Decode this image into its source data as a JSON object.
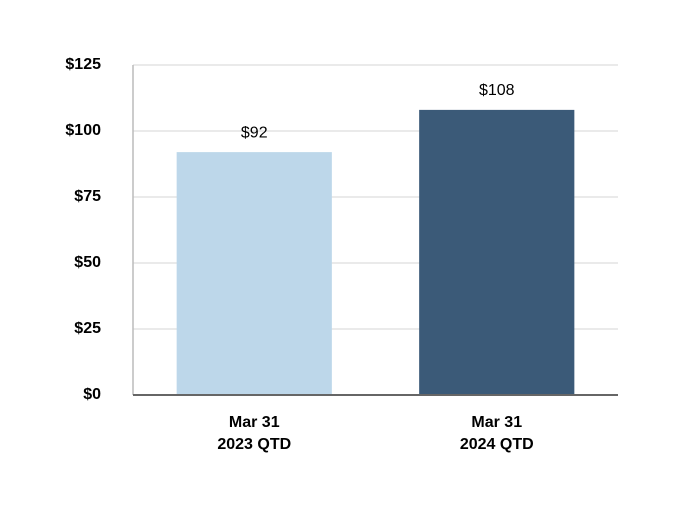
{
  "chart_data": {
    "type": "bar",
    "categories": [
      [
        "Mar 31",
        "2023 QTD"
      ],
      [
        "Mar 31",
        "2024 QTD"
      ]
    ],
    "values": [
      92,
      108
    ],
    "value_labels": [
      "$92",
      "$108"
    ],
    "colors": [
      "#bdd7ea",
      "#3b5a78"
    ],
    "ylim": [
      0,
      125
    ],
    "yticks": [
      {
        "value": 0,
        "label": "$0"
      },
      {
        "value": 25,
        "label": "$25"
      },
      {
        "value": 50,
        "label": "$50"
      },
      {
        "value": 75,
        "label": "$75"
      },
      {
        "value": 100,
        "label": "$100"
      },
      {
        "value": 125,
        "label": "$125"
      }
    ],
    "grid": true
  }
}
